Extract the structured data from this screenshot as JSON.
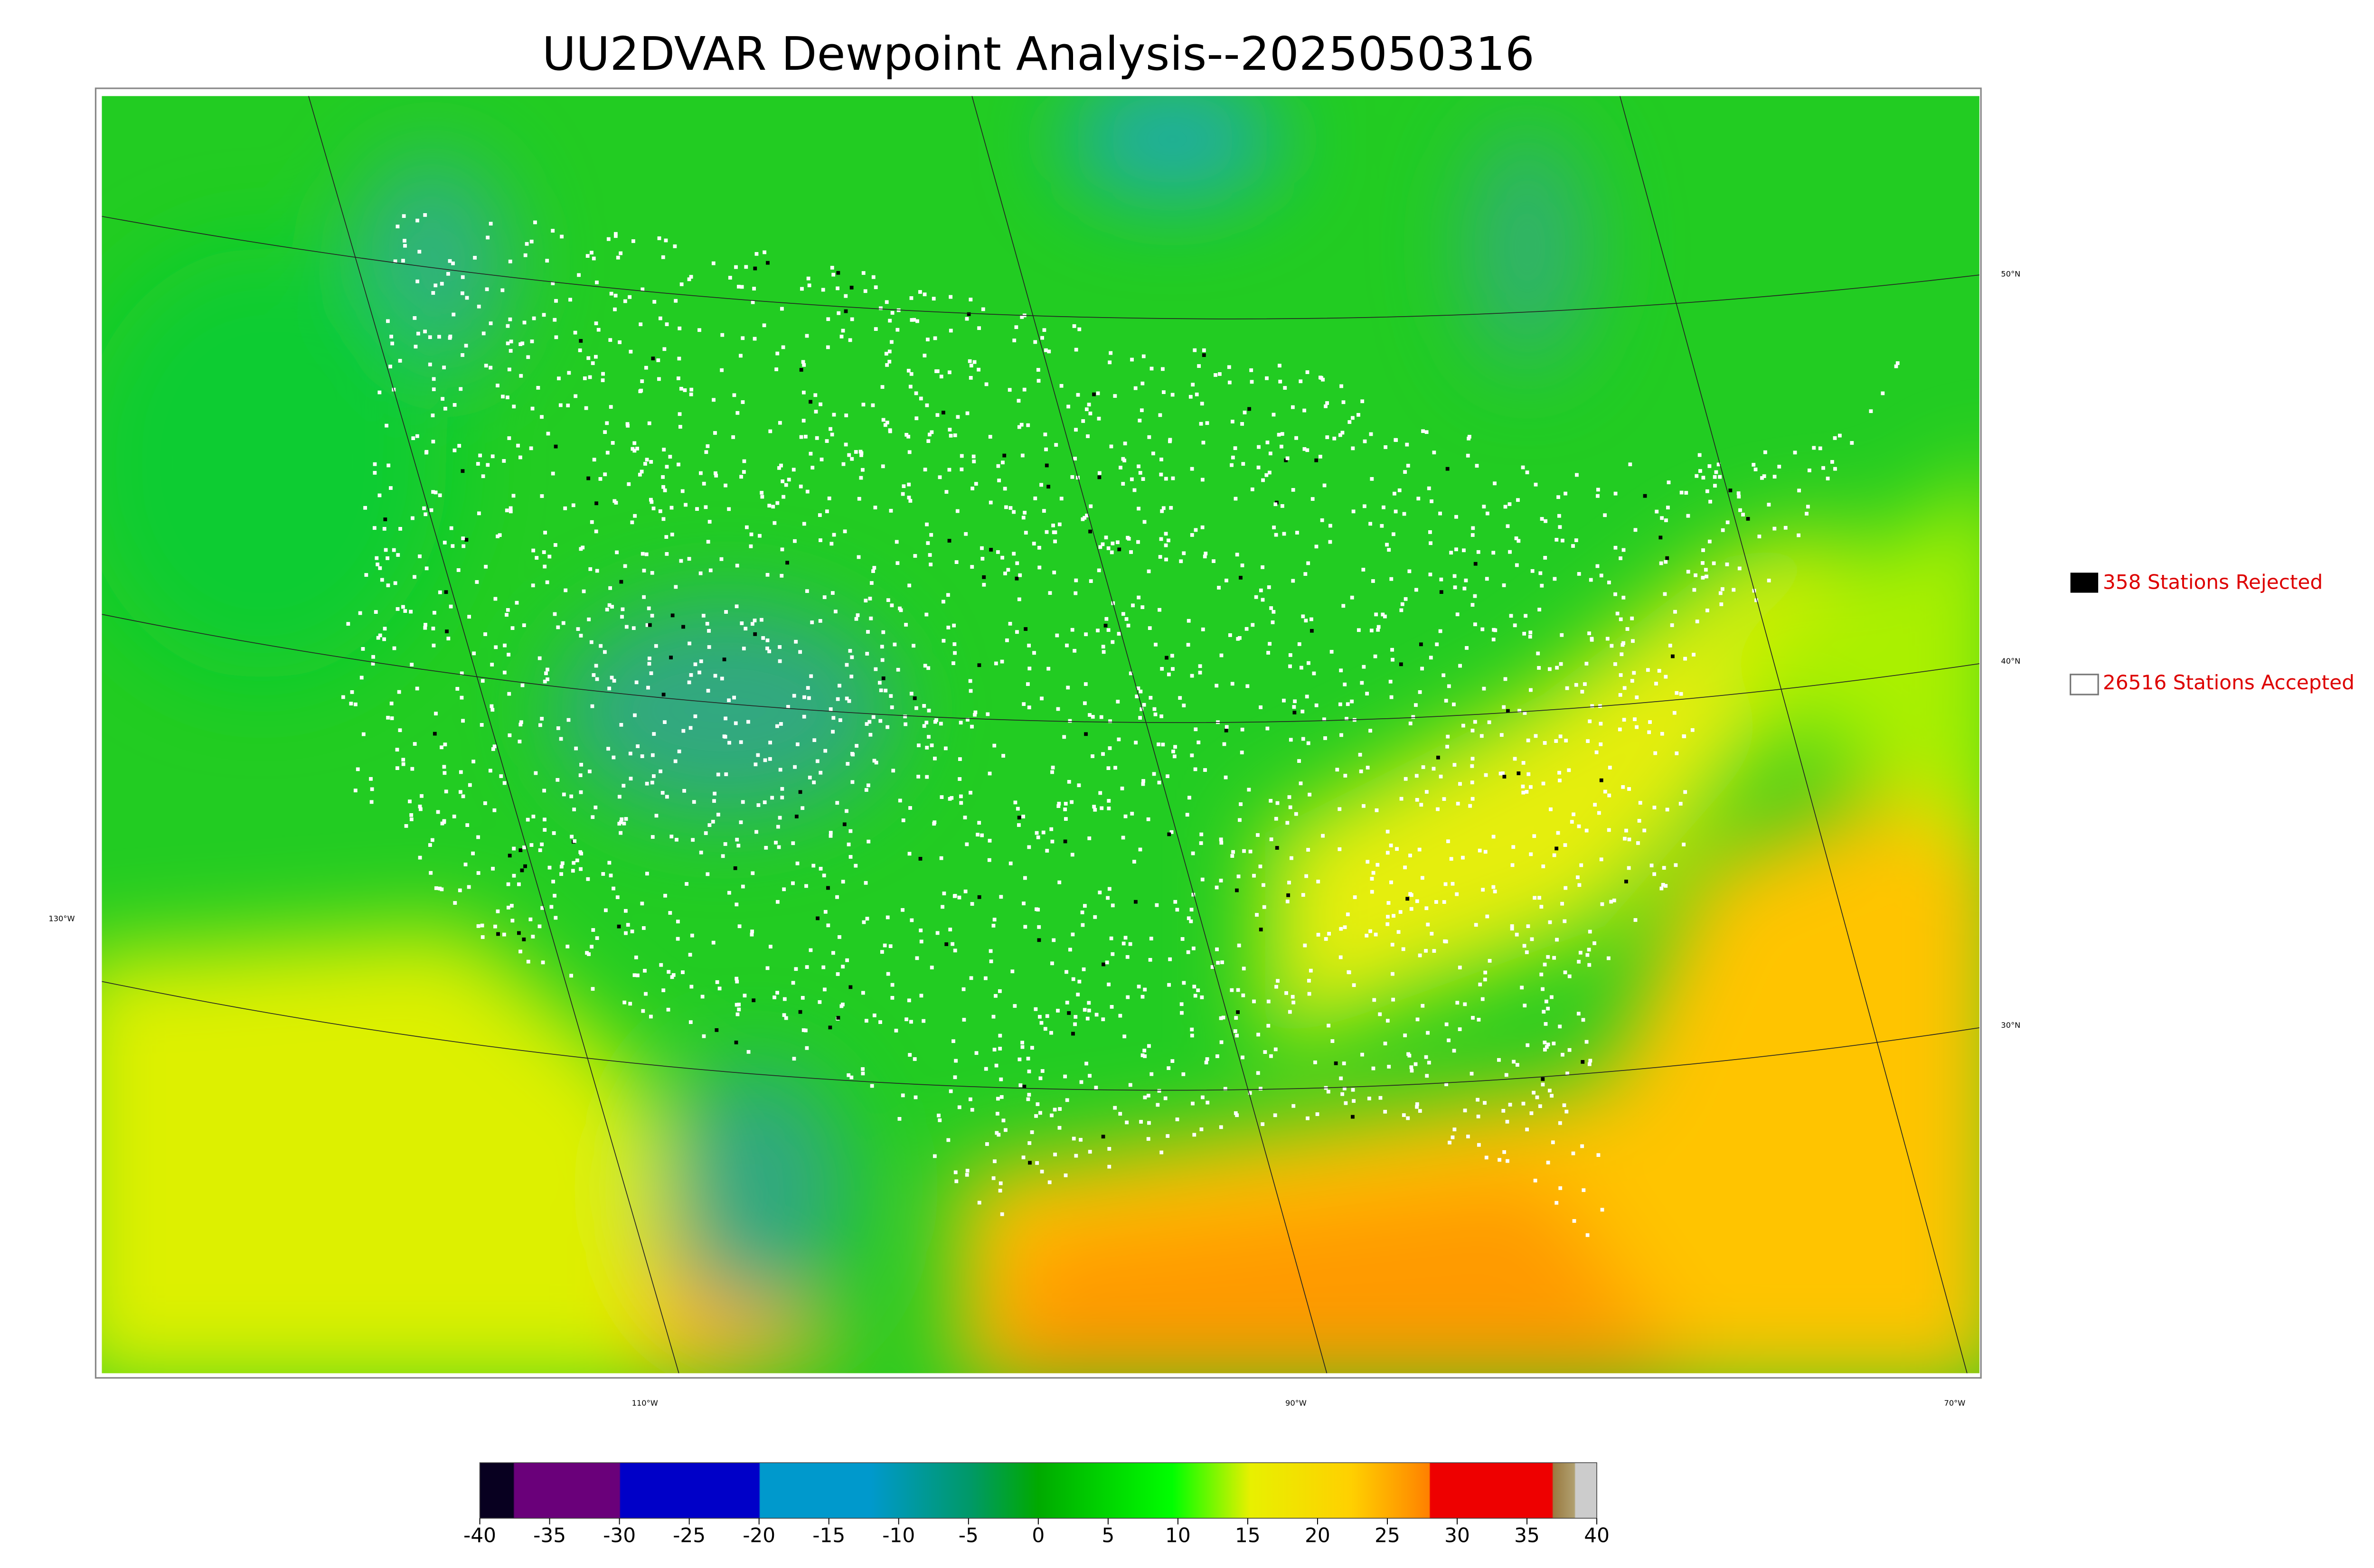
{
  "title": "UU2DVAR Dewpoint Analysis--2025050316",
  "legend": [
    {
      "label": "358 Stations Rejected"
    },
    {
      "label": "26516 Stations Accepted"
    }
  ],
  "latitude_labels": [
    "50°N",
    "40°N",
    "30°N"
  ],
  "longitude_labels": [
    "130°W",
    "110°W",
    "90°W",
    "70°W"
  ],
  "colorbar": {
    "lim": [
      -40,
      40
    ],
    "ticks": [
      -40,
      -35,
      -30,
      -25,
      -20,
      -15,
      -10,
      -5,
      0,
      5,
      10,
      15,
      20,
      25,
      30,
      35,
      40
    ]
  }
}
